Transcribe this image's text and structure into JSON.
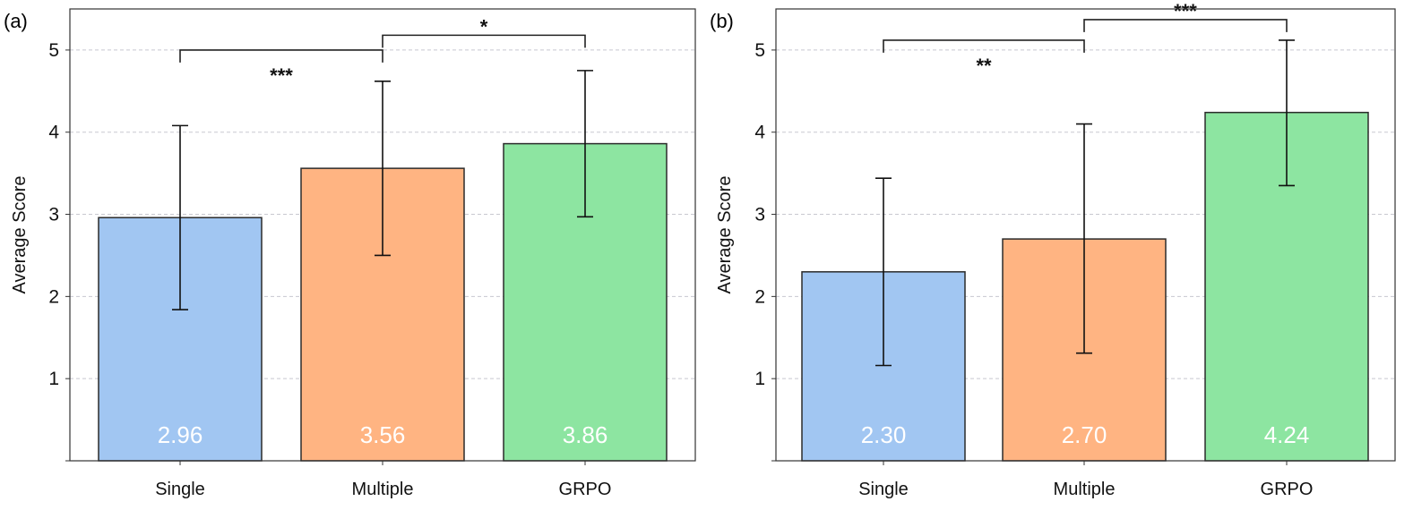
{
  "chart_data": [
    {
      "type": "bar",
      "panel": "(a)",
      "categories": [
        "Single",
        "Multiple",
        "GRPO"
      ],
      "values": [
        2.96,
        3.56,
        3.86
      ],
      "value_labels": [
        "2.96",
        "3.56",
        "3.86"
      ],
      "error_bars": [
        [
          1.84,
          4.08
        ],
        [
          2.5,
          4.62
        ],
        [
          2.97,
          4.75
        ]
      ],
      "colors": [
        "#a1c6f2",
        "#ffb482",
        "#8de5a1"
      ],
      "ylabel": "Average Score",
      "ylim": [
        0,
        5.5
      ],
      "yticks": [
        1,
        2,
        3,
        4,
        5
      ],
      "grid": "horizontal dashed",
      "significance": [
        {
          "from": 0,
          "to": 1,
          "label": "***",
          "y": 5.0
        },
        {
          "from": 1,
          "to": 2,
          "label": "*",
          "y": 5.18
        }
      ]
    },
    {
      "type": "bar",
      "panel": "(b)",
      "categories": [
        "Single",
        "Multiple",
        "GRPO"
      ],
      "values": [
        2.3,
        2.7,
        4.24
      ],
      "value_labels": [
        "2.30",
        "2.70",
        "4.24"
      ],
      "error_bars": [
        [
          1.16,
          3.44
        ],
        [
          1.31,
          4.1
        ],
        [
          3.35,
          5.12
        ]
      ],
      "colors": [
        "#a1c6f2",
        "#ffb482",
        "#8de5a1"
      ],
      "ylabel": "Average Score",
      "ylim": [
        0,
        5.5
      ],
      "yticks": [
        1,
        2,
        3,
        4,
        5
      ],
      "grid": "horizontal dashed",
      "significance": [
        {
          "from": 0,
          "to": 1,
          "label": "**",
          "y": 5.12
        },
        {
          "from": 1,
          "to": 2,
          "label": "***",
          "y": 5.37
        }
      ]
    }
  ]
}
